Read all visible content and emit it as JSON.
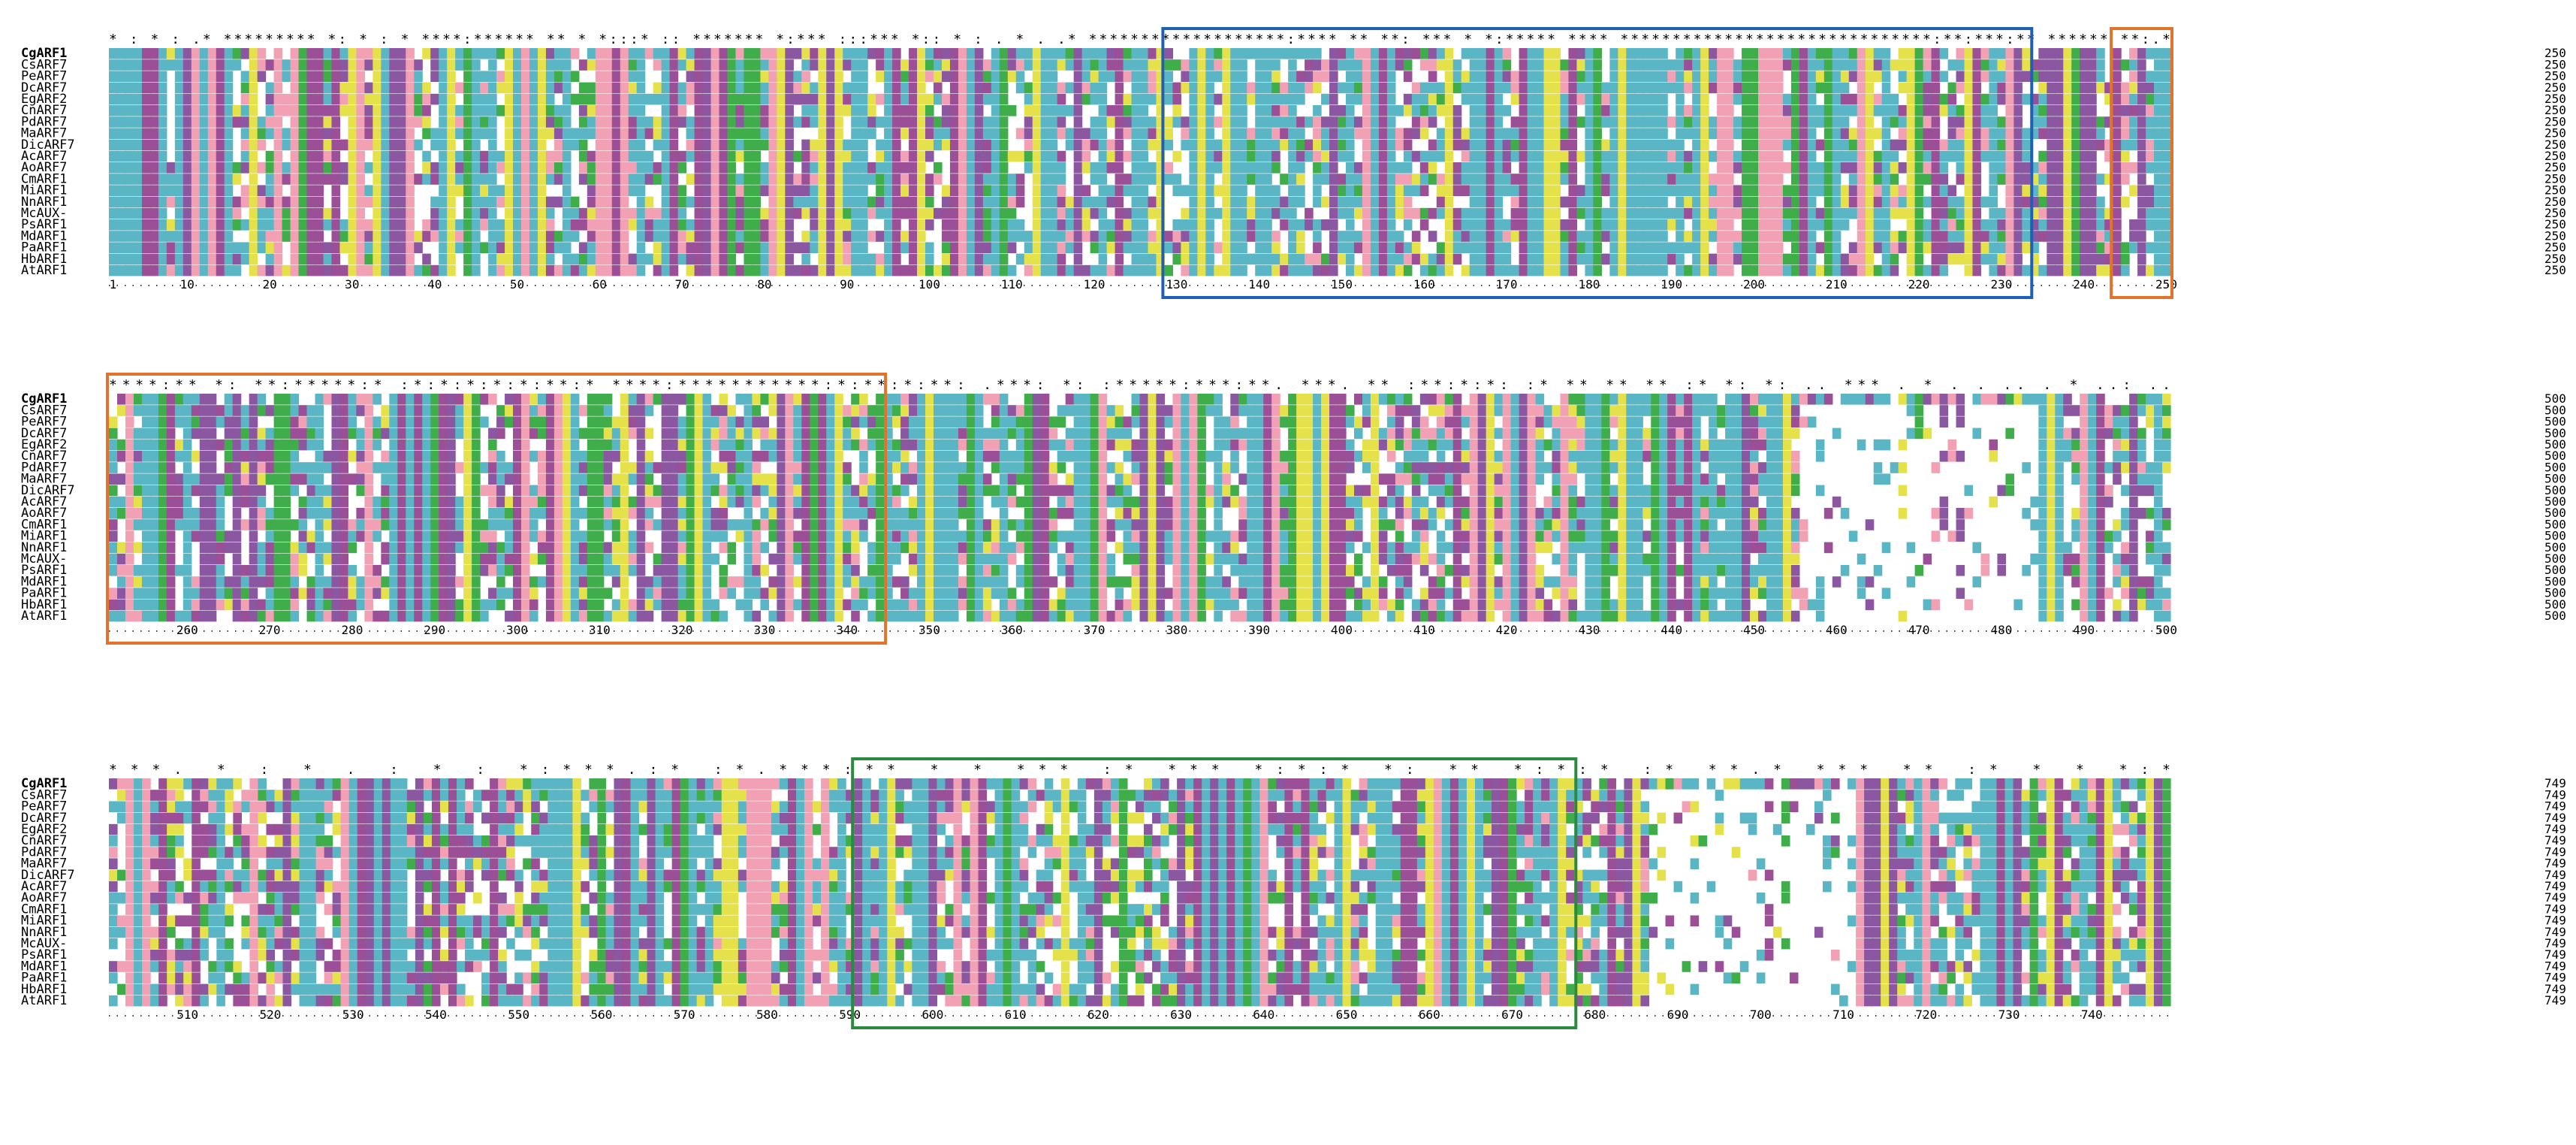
{
  "alignment": {
    "species": [
      "CgARF1",
      "CsARF7",
      "PeARF7",
      "DcARF7",
      "EgARF2",
      "CnARF7",
      "PdARF7",
      "MaARF7",
      "DicARF7",
      "AcARF7",
      "AoARF7",
      "CmARF1",
      "MiARF1",
      "NnARF1",
      "McAUX-",
      "PsARF1",
      "MdARF1",
      "PaARF1",
      "HbARF1",
      "AtARF1"
    ],
    "bold_species": "CgARF1",
    "blocks": [
      {
        "id": "block1",
        "end_position": "250",
        "conservation_text": "*   :  *    :  .*  ********* *: *  : *  ****:****** ** *   *:::* :: ******* *:*** :::*** *:: *  :  .     *  .   .* *******************:**** ** **: *** *  *:***** **** ******************************:**:***:** ****** **:.*",
        "ruler": {
          "labels": [
            "1",
            "10",
            "20",
            "30",
            "40",
            "50",
            "60",
            "70",
            "80",
            "90",
            "100",
            "110",
            "120",
            "130",
            "140",
            "150",
            "160",
            "170",
            "180",
            "190",
            "200",
            "210",
            "220",
            "230",
            "240",
            "250"
          ],
          "start": 1,
          "end": 250
        }
      },
      {
        "id": "block2",
        "end_position": "500",
        "conservation_text": "****:**  *:  **:*****:* :*:*:*:*:*:**:*  ****:***********:*:**:*:**: .***:  *: :*****:***:**. ***. ** :**:*:*:  :* **     ** **   :*  *: *:  ..  ***  .        *    .  .  .. .               *   ..: ..",
        "ruler": {
          "labels": [
            "260",
            "270",
            "280",
            "290",
            "300",
            "310",
            "320",
            "330",
            "340",
            "350",
            "360",
            "370",
            "380",
            "390",
            "400",
            "410",
            "420",
            "430",
            "440",
            "450",
            "460",
            "470",
            "480",
            "490",
            "500"
          ],
          "start": 251,
          "end": 500
        }
      },
      {
        "id": "block3",
        "end_position": "749",
        "conservation_text": "***.  *   :      *    .   :    *  : *:***.:* :*.***:** * *  *** :* ***  *:*:*  *:  **   *:*:* :*  **.* ***  **  :* * * *:*",
        "ruler": {
          "labels": [
            "510",
            "520",
            "530",
            "540",
            "550",
            "560",
            "570",
            "580",
            "590",
            "600",
            "610",
            "620",
            "630",
            "640",
            "650",
            "660",
            "670",
            "680",
            "690",
            "700",
            "710",
            "720",
            "730",
            "740"
          ],
          "start": 501,
          "end": 749
        }
      }
    ],
    "domain_boxes": [
      {
        "block": 1,
        "color": "#1f5fb4",
        "start": 129,
        "end": 233
      },
      {
        "block": 1,
        "color": "#e1742a",
        "start": 244,
        "end": 250
      },
      {
        "block": 2,
        "color": "#e1742a",
        "start": 251,
        "end": 344
      },
      {
        "block": 3,
        "color": "#2a8a3e",
        "start": 591,
        "end": 677
      }
    ],
    "residue_colors": {
      "hydrophobic": "#5ab6c4",
      "polar": "#3fae4a",
      "charged_neg": "#8a57a0",
      "charged_pos": "#9a4f97",
      "gly_pro": "#e5e14b",
      "cys": "#f2a0b4"
    }
  }
}
